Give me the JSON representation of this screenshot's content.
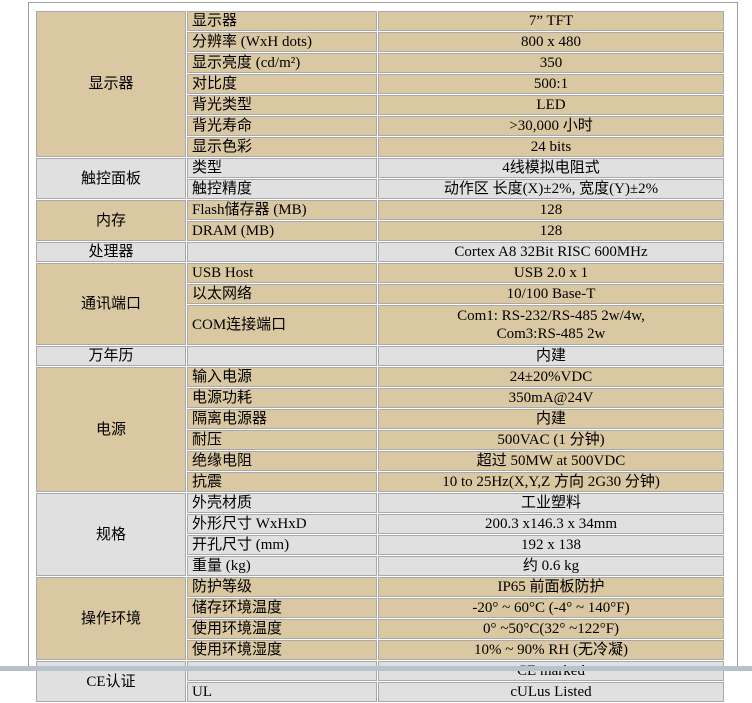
{
  "page": {
    "background": "#ffffff"
  },
  "table": {
    "colors": {
      "tan": "#d9c8a2",
      "gray": "#e0e0e0",
      "border": "#a9a9a9",
      "frame_line": "#9e9e9e",
      "bottom_band": "#b6c3cd",
      "text": "#000000"
    },
    "sections": [
      {
        "category": "显示器",
        "tone": "tan",
        "rows": [
          {
            "item": "显示器",
            "value": "7” TFT"
          },
          {
            "item": "分辨率 (WxH dots)",
            "value": "800 x 480"
          },
          {
            "item": "显示亮度 (cd/m²)",
            "value": "350"
          },
          {
            "item": "对比度",
            "value": "500:1"
          },
          {
            "item": "背光类型",
            "value": "LED"
          },
          {
            "item": "背光寿命",
            "value": ">30,000 小时"
          },
          {
            "item": "显示色彩",
            "value": "24 bits"
          }
        ]
      },
      {
        "category": "触控面板",
        "tone": "gray",
        "rows": [
          {
            "item": "类型",
            "value": "4线模拟电阻式"
          },
          {
            "item": "触控精度",
            "value": "动作区 长度(X)±2%, 宽度(Y)±2%"
          }
        ]
      },
      {
        "category": "内存",
        "tone": "tan",
        "rows": [
          {
            "item": "Flash储存器 (MB)",
            "value": "128"
          },
          {
            "item": "DRAM (MB)",
            "value": "128"
          }
        ]
      },
      {
        "category": "处理器",
        "tone": "gray",
        "rows": [
          {
            "item": "",
            "value": "Cortex A8 32Bit RISC 600MHz"
          }
        ]
      },
      {
        "category": "通讯端口",
        "tone": "tan",
        "rows": [
          {
            "item": "USB Host",
            "value": "USB 2.0 x 1"
          },
          {
            "item": "以太网络",
            "value": "10/100 Base-T"
          },
          {
            "item": "COM连接端口",
            "value": "Com1: RS-232/RS-485 2w/4w,\nCom3:RS-485 2w",
            "tall": true
          }
        ]
      },
      {
        "category": "万年历",
        "tone": "gray",
        "rows": [
          {
            "item": "",
            "value": "内建"
          }
        ]
      },
      {
        "category": "电源",
        "tone": "tan",
        "rows": [
          {
            "item": "输入电源",
            "value": "24±20%VDC"
          },
          {
            "item": "电源功耗",
            "value": "350mA@24V"
          },
          {
            "item": "隔离电源器",
            "value": "内建"
          },
          {
            "item": "耐压",
            "value": "500VAC (1 分钟)"
          },
          {
            "item": "绝缘电阻",
            "value": "超过 50MW at 500VDC"
          },
          {
            "item": "抗震",
            "value": "10 to 25Hz(X,Y,Z 方向 2G30 分钟)"
          }
        ]
      },
      {
        "category": "规格",
        "tone": "gray",
        "rows": [
          {
            "item": "外壳材质",
            "value": "工业塑料"
          },
          {
            "item": "外形尺寸 WxHxD",
            "value": "200.3 x146.3 x 34mm"
          },
          {
            "item": "开孔尺寸 (mm)",
            "value": "192 x 138"
          },
          {
            "item": "重量 (kg)",
            "value": "约 0.6 kg"
          }
        ]
      },
      {
        "category": "操作环境",
        "tone": "tan",
        "rows": [
          {
            "item": "防护等级",
            "value": "IP65 前面板防护"
          },
          {
            "item": "储存环境温度",
            "value": "-20° ~ 60°C (-4° ~ 140°F)"
          },
          {
            "item": "使用环境温度",
            "value": "0° ~50°C(32° ~122°F)"
          },
          {
            "item": "使用环境湿度",
            "value": "10% ~ 90% RH (无冷凝)"
          }
        ]
      },
      {
        "category": "CE认证",
        "tone": "gray",
        "rows": [
          {
            "item": "",
            "value": "CE marked"
          },
          {
            "item": "UL",
            "value": "cULus Listed"
          }
        ]
      }
    ]
  }
}
